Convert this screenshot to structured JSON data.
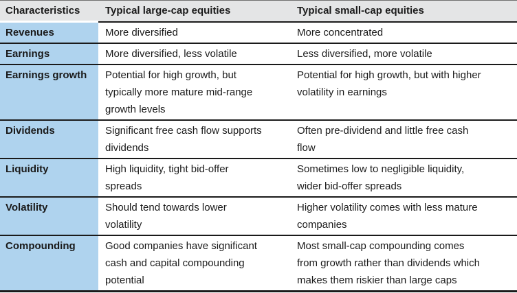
{
  "colors": {
    "header_background": "#e4e5e6",
    "row_header_background": "#afd3ee",
    "rule_color": "#1a1a1a",
    "text_color": "#1a1a1a",
    "cell_background": "#ffffff"
  },
  "table": {
    "columns": [
      {
        "key": "characteristic",
        "label": "Characteristics"
      },
      {
        "key": "large_cap",
        "label": "Typical large-cap equities"
      },
      {
        "key": "small_cap",
        "label": "Typical small-cap equities"
      }
    ],
    "rows": [
      {
        "characteristic": "Revenues",
        "large_cap": "More diversified",
        "small_cap": "More concentrated"
      },
      {
        "characteristic": "Earnings",
        "large_cap": "More diversified, less volatile",
        "small_cap": "Less diversified, more volatile"
      },
      {
        "characteristic": "Earnings growth",
        "large_cap": "Potential for high growth, but\ntypically more mature mid-range\ngrowth levels",
        "small_cap": "Potential for high growth, but with higher\nvolatility in earnings"
      },
      {
        "characteristic": "Dividends",
        "large_cap": "Significant free cash flow supports\ndividends",
        "small_cap": "Often pre-dividend and little free cash\nflow"
      },
      {
        "characteristic": "Liquidity",
        "large_cap": "High liquidity, tight bid-offer\nspreads",
        "small_cap": "Sometimes low to negligible liquidity,\nwider bid-offer spreads"
      },
      {
        "characteristic": "Volatility",
        "large_cap": "Should tend towards lower\nvolatility",
        "small_cap": "Higher volatility comes with less mature\ncompanies"
      },
      {
        "characteristic": "Compounding",
        "large_cap": "Good companies have significant\ncash and capital compounding\npotential",
        "small_cap": "Most small-cap compounding comes\nfrom growth rather than dividends which\nmakes them riskier than large caps"
      }
    ]
  }
}
